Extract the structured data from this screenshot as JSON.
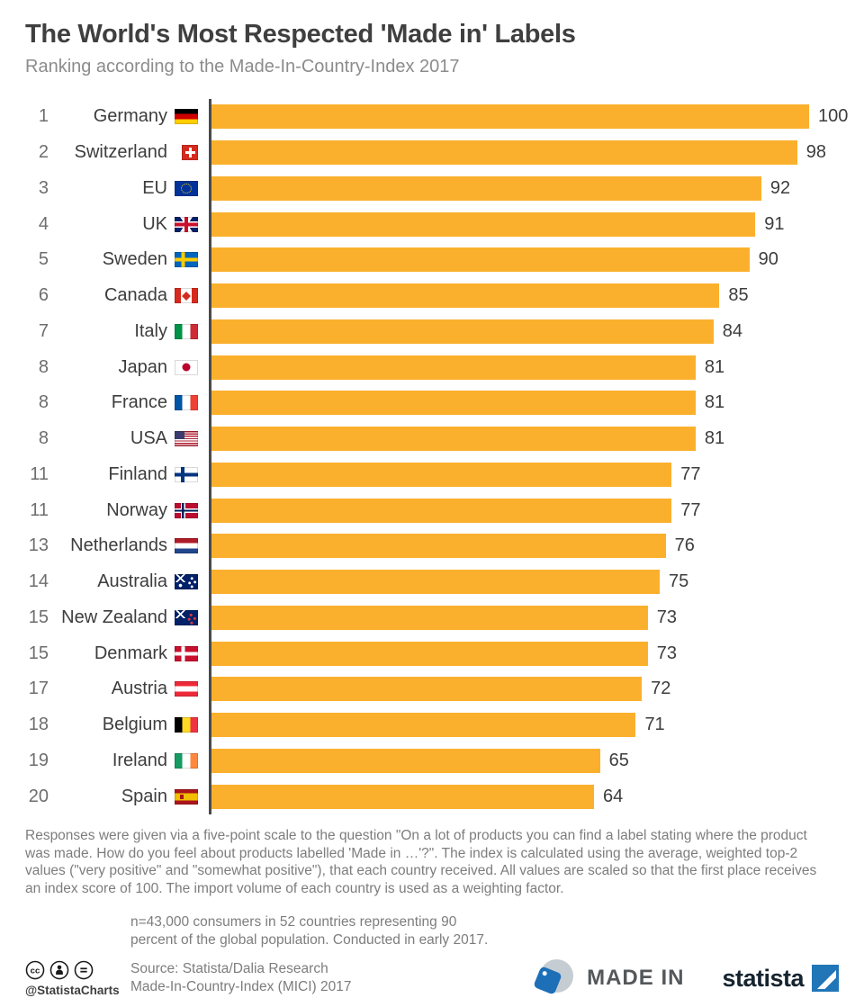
{
  "title": "The World's Most Respected 'Made in' Labels",
  "subtitle": "Ranking according to the Made-In-Country-Index 2017",
  "chart_data": {
    "type": "bar",
    "orientation": "horizontal",
    "title": "The World's Most Respected 'Made in' Labels",
    "xlim": [
      0,
      100
    ],
    "bar_color": "#FBB02D",
    "rows": [
      {
        "rank": "1",
        "country": "Germany",
        "flag": "de",
        "value": 100
      },
      {
        "rank": "2",
        "country": "Switzerland",
        "flag": "ch",
        "value": 98
      },
      {
        "rank": "3",
        "country": "EU",
        "flag": "eu",
        "value": 92
      },
      {
        "rank": "4",
        "country": "UK",
        "flag": "gb",
        "value": 91
      },
      {
        "rank": "5",
        "country": "Sweden",
        "flag": "se",
        "value": 90
      },
      {
        "rank": "6",
        "country": "Canada",
        "flag": "ca",
        "value": 85
      },
      {
        "rank": "7",
        "country": "Italy",
        "flag": "it",
        "value": 84
      },
      {
        "rank": "8",
        "country": "Japan",
        "flag": "jp",
        "value": 81
      },
      {
        "rank": "8",
        "country": "France",
        "flag": "fr",
        "value": 81
      },
      {
        "rank": "8",
        "country": "USA",
        "flag": "us",
        "value": 81
      },
      {
        "rank": "11",
        "country": "Finland",
        "flag": "fi",
        "value": 77
      },
      {
        "rank": "11",
        "country": "Norway",
        "flag": "no",
        "value": 77
      },
      {
        "rank": "13",
        "country": "Netherlands",
        "flag": "nl",
        "value": 76
      },
      {
        "rank": "14",
        "country": "Australia",
        "flag": "au",
        "value": 75
      },
      {
        "rank": "15",
        "country": "New Zealand",
        "flag": "nz",
        "value": 73
      },
      {
        "rank": "15",
        "country": "Denmark",
        "flag": "dk",
        "value": 73
      },
      {
        "rank": "17",
        "country": "Austria",
        "flag": "at",
        "value": 72
      },
      {
        "rank": "18",
        "country": "Belgium",
        "flag": "be",
        "value": 71
      },
      {
        "rank": "19",
        "country": "Ireland",
        "flag": "ie",
        "value": 65
      },
      {
        "rank": "20",
        "country": "Spain",
        "flag": "es",
        "value": 64
      }
    ]
  },
  "footnote": "Responses were given via a five-point scale to the question \"On a lot of products you can find a label stating where the product was made. How do you feel about products labelled 'Made in …'?\". The index is calculated using the average, weighted top-2 values (\"very positive\" and \"somewhat positive\"), that each country received. All values are scaled so that the first place receives an index score of 100. The import volume of each country is used as a weighting factor.",
  "note": "n=43,000 consumers in 52 countries representing 90\npercent of the global population. Conducted in early 2017.",
  "source": "Source: Statista/Dalia Research\nMade-In-Country-Index (MICI) 2017",
  "footer": {
    "handle": "@StatistaCharts",
    "made_in_label": "MADE IN",
    "brand": "statista"
  },
  "colors": {
    "bar": "#FBB02D",
    "axis_line": "#4a4a4a",
    "brand_blue": "#1d6fb8"
  }
}
